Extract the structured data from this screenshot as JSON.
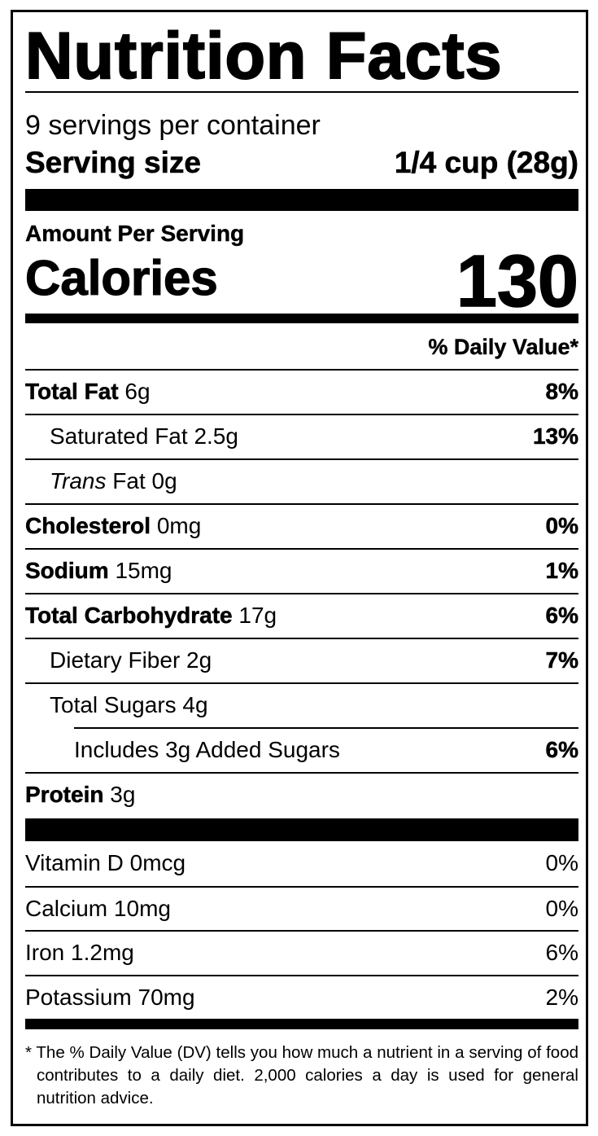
{
  "title": "Nutrition Facts",
  "servings_per_container": "9 servings per container",
  "serving_size_label": "Serving size",
  "serving_size_value": "1/4 cup (28g)",
  "amount_per_serving": "Amount Per Serving",
  "calories_label": "Calories",
  "calories_value": "130",
  "daily_value_header": "% Daily Value*",
  "nutrients": [
    {
      "name": "Total Fat",
      "amount": "6g",
      "dv": "8%",
      "bold": true,
      "indent": 0
    },
    {
      "name": "Saturated Fat",
      "amount": "2.5g",
      "dv": "13%",
      "bold": false,
      "indent": 1
    },
    {
      "name": "Trans",
      "name_suffix": "Fat",
      "amount": "0g",
      "dv": "",
      "bold": false,
      "indent": 1,
      "italic": true
    },
    {
      "name": "Cholesterol",
      "amount": "0mg",
      "dv": "0%",
      "bold": true,
      "indent": 0
    },
    {
      "name": "Sodium",
      "amount": "15mg",
      "dv": "1%",
      "bold": true,
      "indent": 0
    },
    {
      "name": "Total Carbohydrate",
      "amount": "17g",
      "dv": "6%",
      "bold": true,
      "indent": 0
    },
    {
      "name": "Dietary Fiber",
      "amount": "2g",
      "dv": "7%",
      "bold": false,
      "indent": 1
    },
    {
      "name": "Total Sugars",
      "amount": "4g",
      "dv": "",
      "bold": false,
      "indent": 1
    },
    {
      "name": "Includes 3g Added Sugars",
      "amount": "",
      "dv": "6%",
      "bold": false,
      "indent": 2
    },
    {
      "name": "Protein",
      "amount": "3g",
      "dv": "",
      "bold": true,
      "indent": 0
    }
  ],
  "vitamins": [
    {
      "name": "Vitamin D",
      "amount": "0mcg",
      "dv": "0%"
    },
    {
      "name": "Calcium",
      "amount": "10mg",
      "dv": "0%"
    },
    {
      "name": "Iron",
      "amount": "1.2mg",
      "dv": "6%"
    },
    {
      "name": "Potassium",
      "amount": "70mg",
      "dv": "2%"
    }
  ],
  "footnote": "* The % Daily Value (DV) tells you how much a nutrient in a serving of food contributes to a daily diet. 2,000 calories a day is used for general nutrition advice."
}
